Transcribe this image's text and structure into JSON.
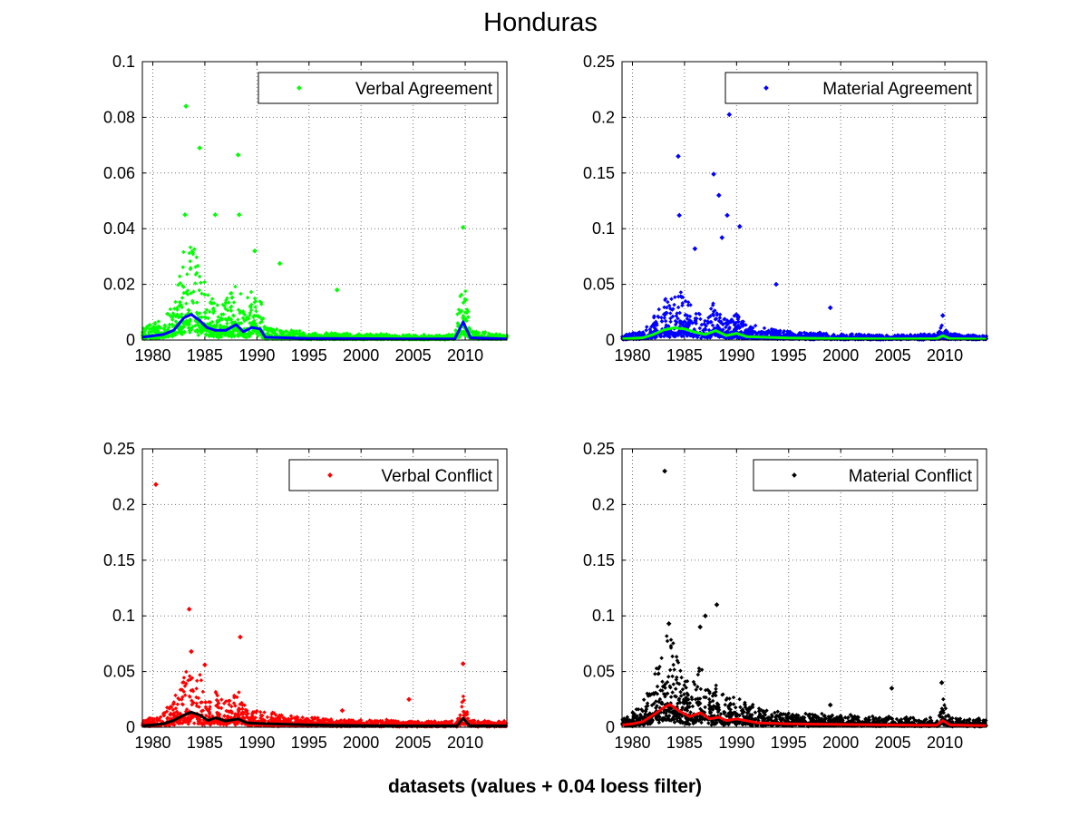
{
  "figure": {
    "title": "Honduras",
    "xlabel": "datasets (values + 0.04 loess filter)"
  },
  "chart_data": [
    {
      "type": "scatter",
      "legend": "Verbal Agreement",
      "legend_location": "top-right",
      "marker_color": "#00ff00",
      "smooth_color": "#0000ff",
      "xlim": [
        1979,
        2014
      ],
      "ylim": [
        0,
        0.1
      ],
      "xticks": [
        "1980",
        "1985",
        "1990",
        "1995",
        "2000",
        "2005",
        "2010"
      ],
      "yticks": [
        "0",
        "0.02",
        "0.04",
        "0.06",
        "0.08",
        "0.1"
      ],
      "grid": true,
      "outliers": [
        [
          1983.2,
          0.084
        ],
        [
          1984.5,
          0.069
        ],
        [
          1988.2,
          0.0665
        ],
        [
          1986.0,
          0.045
        ],
        [
          1988.3,
          0.045
        ],
        [
          1983.1,
          0.045
        ],
        [
          1992.2,
          0.0275
        ],
        [
          2009.8,
          0.0405
        ],
        [
          1997.7,
          0.018
        ],
        [
          1989.8,
          0.032
        ]
      ],
      "loess": [
        [
          1979,
          0.001
        ],
        [
          1980,
          0.0015
        ],
        [
          1981,
          0.002
        ],
        [
          1982,
          0.0035
        ],
        [
          1983,
          0.008
        ],
        [
          1983.7,
          0.0092
        ],
        [
          1984.5,
          0.007
        ],
        [
          1985.2,
          0.0045
        ],
        [
          1986,
          0.0035
        ],
        [
          1987,
          0.0035
        ],
        [
          1988,
          0.0055
        ],
        [
          1988.7,
          0.003
        ],
        [
          1989.5,
          0.0045
        ],
        [
          1990.3,
          0.004
        ],
        [
          1990.8,
          0.001
        ],
        [
          1995,
          0.0006
        ],
        [
          2000,
          0.0005
        ],
        [
          2005,
          0.0004
        ],
        [
          2009,
          0.0004
        ],
        [
          2009.8,
          0.0065
        ],
        [
          2010.5,
          0.0008
        ],
        [
          2014,
          0.0004
        ]
      ]
    },
    {
      "type": "scatter",
      "legend": "Material Agreement",
      "legend_location": "top-right",
      "marker_color": "#0000ff",
      "smooth_color": "#00ff00",
      "xlim": [
        1979,
        2014
      ],
      "ylim": [
        0,
        0.25
      ],
      "xticks": [
        "1980",
        "1985",
        "1990",
        "1995",
        "2000",
        "2005",
        "2010"
      ],
      "yticks": [
        "0",
        "0.05",
        "0.1",
        "0.15",
        "0.2",
        "0.25"
      ],
      "grid": true,
      "outliers": [
        [
          1989.3,
          0.2025
        ],
        [
          1984.4,
          0.165
        ],
        [
          1987.8,
          0.149
        ],
        [
          1988.3,
          0.13
        ],
        [
          1984.5,
          0.112
        ],
        [
          1989.1,
          0.112
        ],
        [
          1990.3,
          0.102
        ],
        [
          1986.0,
          0.082
        ],
        [
          1988.6,
          0.092
        ],
        [
          1999.0,
          0.029
        ],
        [
          1993.8,
          0.05
        ],
        [
          2009.8,
          0.022
        ]
      ],
      "loess": [
        [
          1979,
          0.001
        ],
        [
          1981,
          0.002
        ],
        [
          1982,
          0.005
        ],
        [
          1983,
          0.009
        ],
        [
          1984,
          0.011
        ],
        [
          1985,
          0.01
        ],
        [
          1986,
          0.007
        ],
        [
          1987,
          0.005
        ],
        [
          1988,
          0.0085
        ],
        [
          1989,
          0.004
        ],
        [
          1990,
          0.006
        ],
        [
          1991,
          0.003
        ],
        [
          1995,
          0.0018
        ],
        [
          2000,
          0.0012
        ],
        [
          2005,
          0.001
        ],
        [
          2009.2,
          0.0012
        ],
        [
          2009.8,
          0.004
        ],
        [
          2010.5,
          0.0012
        ],
        [
          2014,
          0.0008
        ]
      ]
    },
    {
      "type": "scatter",
      "legend": "Verbal Conflict",
      "legend_location": "top-right",
      "marker_color": "#ff0000",
      "smooth_color": "#000000",
      "xlim": [
        1979,
        2014
      ],
      "ylim": [
        0,
        0.25
      ],
      "xticks": [
        "1980",
        "1985",
        "1990",
        "1995",
        "2000",
        "2005",
        "2010"
      ],
      "yticks": [
        "0",
        "0.05",
        "0.1",
        "0.15",
        "0.2",
        "0.25"
      ],
      "grid": true,
      "outliers": [
        [
          1980.3,
          0.218
        ],
        [
          1983.5,
          0.106
        ],
        [
          1988.4,
          0.081
        ],
        [
          1983.7,
          0.068
        ],
        [
          1985.0,
          0.056
        ],
        [
          2009.8,
          0.057
        ],
        [
          2004.6,
          0.025
        ],
        [
          1998.2,
          0.015
        ]
      ],
      "loess": [
        [
          1979,
          0.0015
        ],
        [
          1980,
          0.002
        ],
        [
          1981,
          0.003
        ],
        [
          1982,
          0.006
        ],
        [
          1983,
          0.011
        ],
        [
          1983.7,
          0.0135
        ],
        [
          1984.5,
          0.011
        ],
        [
          1985.3,
          0.006
        ],
        [
          1986,
          0.0085
        ],
        [
          1987,
          0.0055
        ],
        [
          1988.2,
          0.0075
        ],
        [
          1989,
          0.004
        ],
        [
          1990,
          0.0035
        ],
        [
          1995,
          0.002
        ],
        [
          2000,
          0.0015
        ],
        [
          2005,
          0.0012
        ],
        [
          2009.2,
          0.0012
        ],
        [
          2009.8,
          0.008
        ],
        [
          2010.4,
          0.0015
        ],
        [
          2014,
          0.0012
        ]
      ]
    },
    {
      "type": "scatter",
      "legend": "Material Conflict",
      "legend_location": "top-right",
      "marker_color": "#000000",
      "smooth_color": "#ff0000",
      "xlim": [
        1979,
        2014
      ],
      "ylim": [
        0,
        0.25
      ],
      "xticks": [
        "1980",
        "1985",
        "1990",
        "1995",
        "2000",
        "2005",
        "2010"
      ],
      "yticks": [
        "0",
        "0.05",
        "0.1",
        "0.15",
        "0.2",
        "0.25"
      ],
      "grid": true,
      "outliers": [
        [
          1983.1,
          0.23
        ],
        [
          1988.1,
          0.11
        ],
        [
          1987.0,
          0.1
        ],
        [
          1983.5,
          0.093
        ],
        [
          1986.5,
          0.09
        ],
        [
          2004.9,
          0.035
        ],
        [
          2009.7,
          0.04
        ],
        [
          1999.0,
          0.02
        ]
      ],
      "loess": [
        [
          1979,
          0.002
        ],
        [
          1980,
          0.003
        ],
        [
          1981,
          0.005
        ],
        [
          1982,
          0.011
        ],
        [
          1983,
          0.0175
        ],
        [
          1983.6,
          0.0205
        ],
        [
          1984.5,
          0.0145
        ],
        [
          1985.5,
          0.0095
        ],
        [
          1986.5,
          0.013
        ],
        [
          1987.4,
          0.0075
        ],
        [
          1988.3,
          0.009
        ],
        [
          1989,
          0.006
        ],
        [
          1990,
          0.0075
        ],
        [
          1992,
          0.004
        ],
        [
          1995,
          0.003
        ],
        [
          2000,
          0.0025
        ],
        [
          2005,
          0.002
        ],
        [
          2009.2,
          0.0018
        ],
        [
          2009.8,
          0.006
        ],
        [
          2010.5,
          0.002
        ],
        [
          2014,
          0.0015
        ]
      ]
    }
  ]
}
